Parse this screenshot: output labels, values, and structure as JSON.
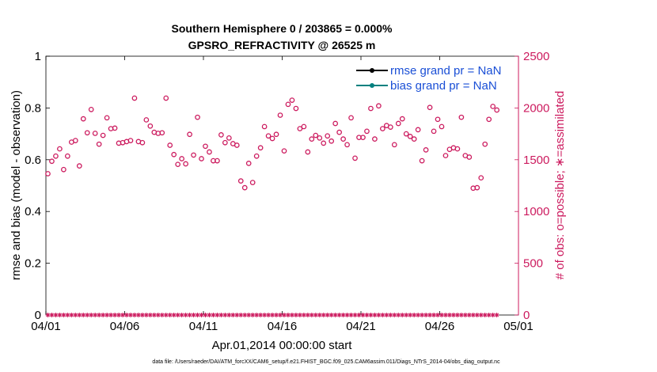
{
  "chart_data": {
    "type": "scatter",
    "title": "Southern Hemisphere 0 / 203865 = 0.000%",
    "subtitle": "GPSRO_REFRACTIVITY @ 26525 m",
    "xlabel": "Apr.01,2014 00:00:00 start",
    "ylabel_left": "rmse and bias (model - observation)",
    "ylabel_right": "# of obs: o=possible; ∗=assimilated",
    "footnote": "data file: /Users/raeder/DAI/ATM_forcXX/CAM6_setup/f.e21.FHIST_BGC.f09_025.CAM6assim.011/Diags_NTrS_2014-04/obs_diag_output.nc",
    "xlim": [
      0,
      30
    ],
    "ylim_left": [
      0,
      1
    ],
    "ylim_right": [
      0,
      2500
    ],
    "xticks": [
      {
        "x": 0,
        "label": "04/01"
      },
      {
        "x": 5,
        "label": "04/06"
      },
      {
        "x": 10,
        "label": "04/11"
      },
      {
        "x": 15,
        "label": "04/16"
      },
      {
        "x": 20,
        "label": "04/21"
      },
      {
        "x": 25,
        "label": "04/26"
      },
      {
        "x": 30,
        "label": "05/01"
      }
    ],
    "yticks_left": [
      "0",
      "0.2",
      "0.4",
      "0.6",
      "0.8",
      "1"
    ],
    "yticks_right": [
      "0",
      "500",
      "1000",
      "1500",
      "2000",
      "2500"
    ],
    "legend_position": "top-right",
    "series": [
      {
        "name": "rmse grand pr = NaN",
        "color": "#000000",
        "axis": "left",
        "values": []
      },
      {
        "name": "bias grand pr = NaN",
        "color": "#00807f",
        "axis": "left",
        "values": []
      },
      {
        "name": "possible",
        "color": "#cc1a5e",
        "axis": "right",
        "marker": "circle",
        "values": [
          1365,
          1485,
          1535,
          1605,
          1405,
          1535,
          1670,
          1685,
          1440,
          1895,
          1760,
          1985,
          1755,
          1650,
          1735,
          1905,
          1800,
          1805,
          1660,
          1665,
          1675,
          1685,
          2095,
          1675,
          1665,
          1885,
          1825,
          1765,
          1755,
          1760,
          2095,
          1640,
          1550,
          1455,
          1510,
          1460,
          1745,
          1545,
          1910,
          1510,
          1630,
          1575,
          1490,
          1490,
          1740,
          1665,
          1710,
          1655,
          1640,
          1295,
          1230,
          1465,
          1280,
          1535,
          1615,
          1820,
          1730,
          1705,
          1745,
          1930,
          1585,
          2035,
          2075,
          1995,
          1800,
          1820,
          1575,
          1700,
          1735,
          1710,
          1660,
          1730,
          1680,
          1850,
          1765,
          1700,
          1645,
          1905,
          1515,
          1715,
          1715,
          1775,
          1995,
          1700,
          2020,
          1800,
          1830,
          1815,
          1645,
          1850,
          1895,
          1750,
          1725,
          1700,
          1790,
          1490,
          1595,
          2005,
          1775,
          1890,
          1820,
          1540,
          1600,
          1615,
          1605,
          1910,
          1540,
          1525,
          1225,
          1230,
          1325,
          1650,
          1890,
          2015,
          1980
        ]
      },
      {
        "name": "assimilated",
        "color": "#cc1a5e",
        "axis": "right",
        "marker": "asterisk",
        "values": [
          0,
          0,
          0,
          0,
          0,
          0,
          0,
          0,
          0,
          0,
          0,
          0,
          0,
          0,
          0,
          0,
          0,
          0,
          0,
          0,
          0,
          0,
          0,
          0,
          0,
          0,
          0,
          0,
          0,
          0,
          0,
          0,
          0,
          0,
          0,
          0,
          0,
          0,
          0,
          0,
          0,
          0,
          0,
          0,
          0,
          0,
          0,
          0,
          0,
          0,
          0,
          0,
          0,
          0,
          0,
          0,
          0,
          0,
          0,
          0,
          0,
          0,
          0,
          0,
          0,
          0,
          0,
          0,
          0,
          0,
          0,
          0,
          0,
          0,
          0,
          0,
          0,
          0,
          0,
          0,
          0,
          0,
          0,
          0,
          0,
          0,
          0,
          0,
          0,
          0,
          0,
          0,
          0,
          0,
          0,
          0,
          0,
          0,
          0,
          0,
          0,
          0,
          0,
          0,
          0,
          0,
          0,
          0,
          0,
          0,
          0,
          0,
          0,
          0,
          0
        ]
      }
    ]
  },
  "colors": {
    "axis_left": "#000000",
    "axis_right": "#cc1a5e",
    "legend_text": "#1a4fd6"
  }
}
